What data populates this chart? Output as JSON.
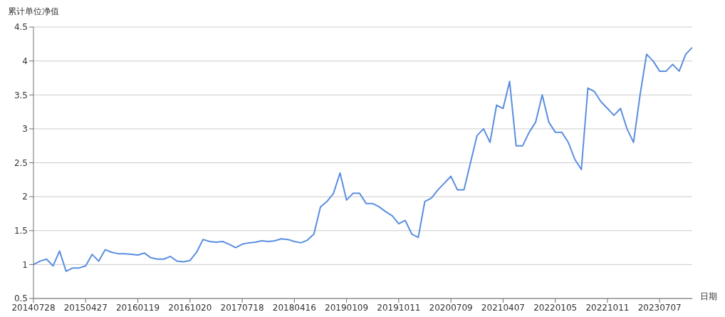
{
  "chart_data": {
    "type": "line",
    "ylabel": "累计单位净值",
    "xlabel": "日期",
    "categories": [
      "20140728",
      null,
      null,
      null,
      null,
      null,
      null,
      null,
      "20150427",
      null,
      null,
      null,
      null,
      null,
      null,
      null,
      "20160119",
      null,
      null,
      null,
      null,
      null,
      null,
      null,
      "20161020",
      null,
      null,
      null,
      null,
      null,
      null,
      null,
      "20170718",
      null,
      null,
      null,
      null,
      null,
      null,
      null,
      "20180416",
      null,
      null,
      null,
      null,
      null,
      null,
      null,
      "20190109",
      null,
      null,
      null,
      null,
      null,
      null,
      null,
      "20191011",
      null,
      null,
      null,
      null,
      null,
      null,
      null,
      "20200709",
      null,
      null,
      null,
      null,
      null,
      null,
      null,
      "20210407",
      null,
      null,
      null,
      null,
      null,
      null,
      null,
      "20220105",
      null,
      null,
      null,
      null,
      null,
      null,
      null,
      "20221011",
      null,
      null,
      null,
      null,
      null,
      null,
      null,
      "20230707",
      null,
      null,
      null,
      null,
      null
    ],
    "series": [
      {
        "color": "#5b8ee0",
        "values": [
          1.0,
          1.05,
          1.08,
          0.98,
          1.2,
          0.9,
          0.95,
          0.95,
          0.98,
          1.15,
          1.05,
          1.22,
          1.18,
          1.16,
          1.16,
          1.15,
          1.14,
          1.17,
          1.1,
          1.08,
          1.08,
          1.12,
          1.05,
          1.04,
          1.06,
          1.18,
          1.37,
          1.34,
          1.33,
          1.34,
          1.3,
          1.25,
          1.3,
          1.32,
          1.33,
          1.35,
          1.34,
          1.35,
          1.38,
          1.37,
          1.34,
          1.32,
          1.36,
          1.45,
          1.85,
          1.93,
          2.05,
          2.35,
          1.95,
          2.05,
          2.05,
          1.9,
          1.9,
          1.85,
          1.78,
          1.72,
          1.6,
          1.65,
          1.45,
          1.4,
          1.93,
          1.98,
          2.1,
          2.2,
          2.3,
          2.1,
          2.1,
          2.5,
          2.9,
          3.0,
          2.8,
          3.35,
          3.3,
          3.7,
          2.75,
          2.75,
          2.95,
          3.1,
          3.5,
          3.1,
          2.95,
          2.95,
          2.8,
          2.55,
          2.4,
          3.6,
          3.55,
          3.4,
          3.3,
          3.2,
          3.3,
          3.0,
          2.8,
          3.5,
          4.1,
          4.0,
          3.85,
          3.85,
          3.95,
          3.85,
          4.1,
          4.2
        ]
      }
    ],
    "ylim": [
      0.5,
      4.5
    ],
    "yticks": [
      0.5,
      1,
      1.5,
      2,
      2.5,
      3,
      3.5,
      4,
      4.5
    ],
    "grid": "y",
    "marker": "none",
    "line_style": "solid",
    "legend": false
  }
}
